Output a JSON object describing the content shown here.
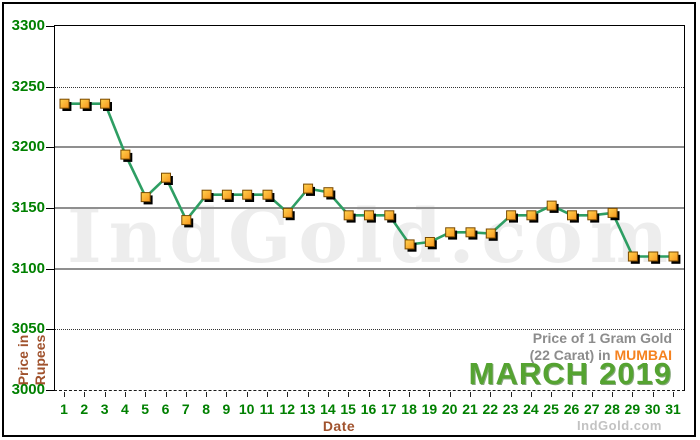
{
  "colors": {
    "axis_tick_green": "#008000",
    "axis_title_brown": "#A0522D",
    "grid_gray": "#8f8f8f",
    "line_green": "#2E9E63",
    "marker_orange_light": "#FFD34E",
    "marker_orange_dark": "#F7941D",
    "marker_border": "#7A4A00",
    "marker_shadow": "#000000",
    "caption_gray": "#8c8c8c",
    "mumbai_orange": "#F5821F",
    "month_green": "#55A331",
    "watermark_gray": "#ededed",
    "credit_gray": "#c2c2c2"
  },
  "y_axis": {
    "title_line1": "Price in",
    "title_line2": "Rupees",
    "ticks": [
      "3300",
      "3250",
      "3200",
      "3150",
      "3100",
      "3050",
      "3000"
    ]
  },
  "x_axis": {
    "title": "Date",
    "ticks": [
      "1",
      "2",
      "3",
      "4",
      "5",
      "6",
      "7",
      "8",
      "9",
      "10",
      "11",
      "12",
      "13",
      "14",
      "15",
      "16",
      "17",
      "18",
      "19",
      "20",
      "21",
      "22",
      "23",
      "24",
      "25",
      "26",
      "27",
      "28",
      "29",
      "30",
      "31"
    ]
  },
  "caption": {
    "line1": "Price of 1 Gram Gold",
    "line2_prefix": "(22 Carat) in ",
    "line2_highlight": "MUMBAI",
    "month": "MARCH",
    "year": "2019"
  },
  "watermark": "IndGold.com",
  "site_credit": "IndGold.com",
  "chart_data": {
    "type": "line",
    "title": "Price of 1 Gram Gold (22 Carat) in MUMBAI - MARCH 2019",
    "xlabel": "Date",
    "ylabel": "Price in Rupees",
    "x": [
      1,
      2,
      3,
      4,
      5,
      6,
      7,
      8,
      9,
      10,
      11,
      12,
      13,
      14,
      15,
      16,
      17,
      18,
      19,
      20,
      21,
      22,
      23,
      24,
      25,
      26,
      27,
      28,
      29,
      30,
      31
    ],
    "series": [
      {
        "name": "Gold price per 1 gram, 22 carat, Mumbai (Rupees)",
        "values": [
          3236,
          3236,
          3236,
          3194,
          3159,
          3175,
          3140,
          3161,
          3161,
          3161,
          3161,
          3146,
          3166,
          3163,
          3144,
          3144,
          3144,
          3120,
          3122,
          3130,
          3130,
          3129,
          3144,
          3144,
          3152,
          3144,
          3144,
          3146,
          3110,
          3110,
          3110
        ]
      }
    ],
    "ylim": [
      3000,
      3300
    ],
    "y_ticks": [
      3000,
      3050,
      3100,
      3150,
      3200,
      3250,
      3300
    ],
    "dotted_gridlines": [
      3250,
      3050
    ],
    "solid_gridlines": [
      3200,
      3150,
      3100
    ],
    "grid": true,
    "legend": "none",
    "marker": "square"
  }
}
